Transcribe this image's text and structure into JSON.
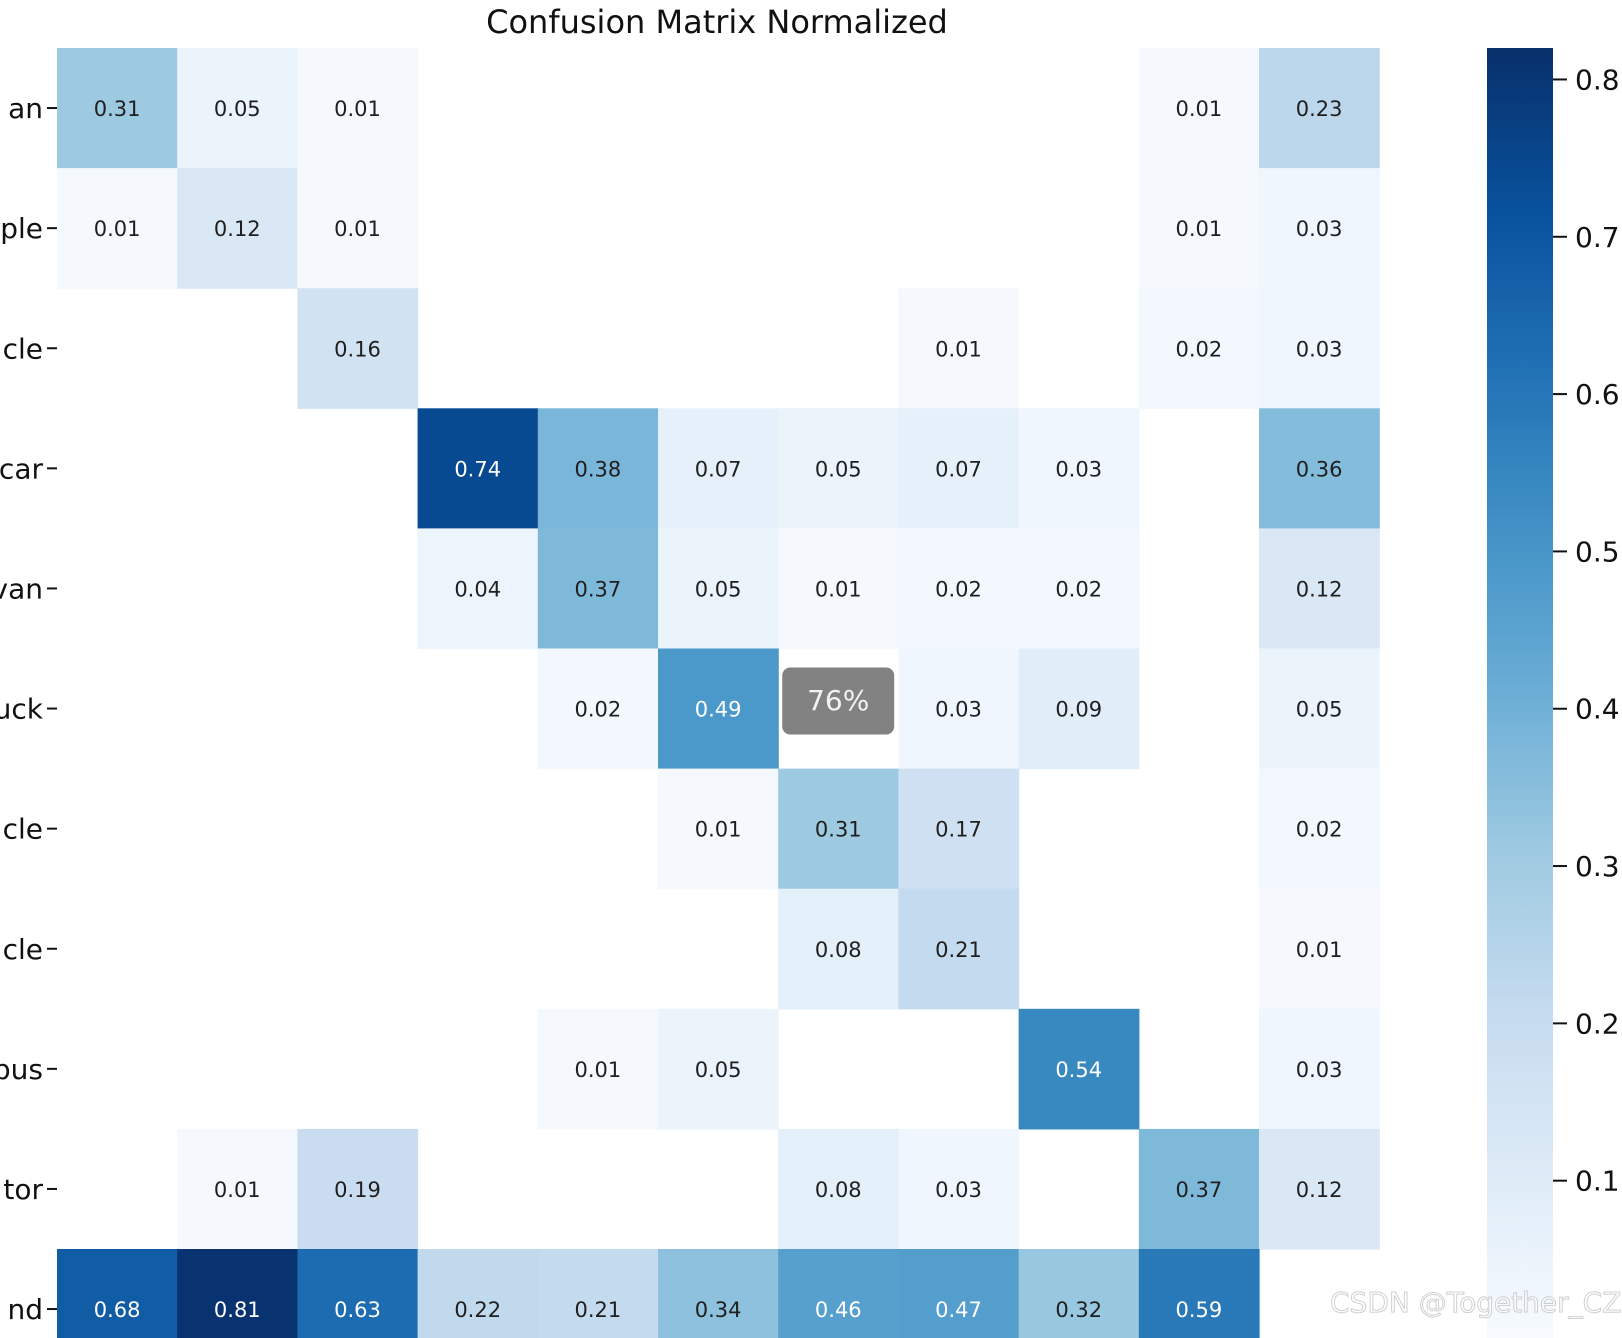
{
  "chart_data": {
    "type": "heatmap",
    "title": "Confusion Matrix Normalized",
    "row_labels": [
      "an",
      "ple",
      "cle",
      "car",
      "van",
      "uck",
      "cle",
      "cle",
      "bus",
      "tor",
      "nd"
    ],
    "cell_values": [
      [
        0.31,
        0.05,
        0.01,
        null,
        null,
        null,
        null,
        null,
        null,
        0.01,
        0.23
      ],
      [
        0.01,
        0.12,
        0.01,
        null,
        null,
        null,
        null,
        null,
        null,
        0.01,
        0.03
      ],
      [
        null,
        null,
        0.16,
        null,
        null,
        null,
        null,
        0.01,
        null,
        0.02,
        0.03
      ],
      [
        null,
        null,
        null,
        0.74,
        0.38,
        0.07,
        0.05,
        0.07,
        0.03,
        null,
        0.36
      ],
      [
        null,
        null,
        null,
        0.04,
        0.37,
        0.05,
        0.01,
        0.02,
        0.02,
        null,
        0.12
      ],
      [
        null,
        null,
        null,
        null,
        0.02,
        0.49,
        null,
        0.03,
        0.09,
        null,
        0.05
      ],
      [
        null,
        null,
        null,
        null,
        null,
        0.01,
        0.31,
        0.17,
        null,
        null,
        0.02
      ],
      [
        null,
        null,
        null,
        null,
        null,
        null,
        0.08,
        0.21,
        null,
        null,
        0.01
      ],
      [
        null,
        null,
        null,
        null,
        0.01,
        0.05,
        null,
        null,
        0.54,
        null,
        0.03
      ],
      [
        null,
        0.01,
        0.19,
        null,
        null,
        null,
        0.08,
        0.03,
        null,
        0.37,
        0.12
      ],
      [
        0.68,
        0.81,
        0.63,
        0.22,
        0.21,
        0.34,
        0.46,
        0.47,
        0.32,
        0.59,
        null
      ]
    ],
    "colorbar": {
      "colormap": "Blues",
      "vmin": 0.0,
      "vmax": 0.82,
      "tick_labels": [
        "0.8",
        "0.7",
        "0.6",
        "0.5",
        "0.4",
        "0.3",
        "0.2",
        "0.1"
      ],
      "tick_values": [
        0.8,
        0.7,
        0.6,
        0.5,
        0.4,
        0.3,
        0.2,
        0.1
      ]
    },
    "tooltip": {
      "text": "76%",
      "row": 5,
      "col": 6
    }
  },
  "watermark": "CSDN @Together_CZ"
}
